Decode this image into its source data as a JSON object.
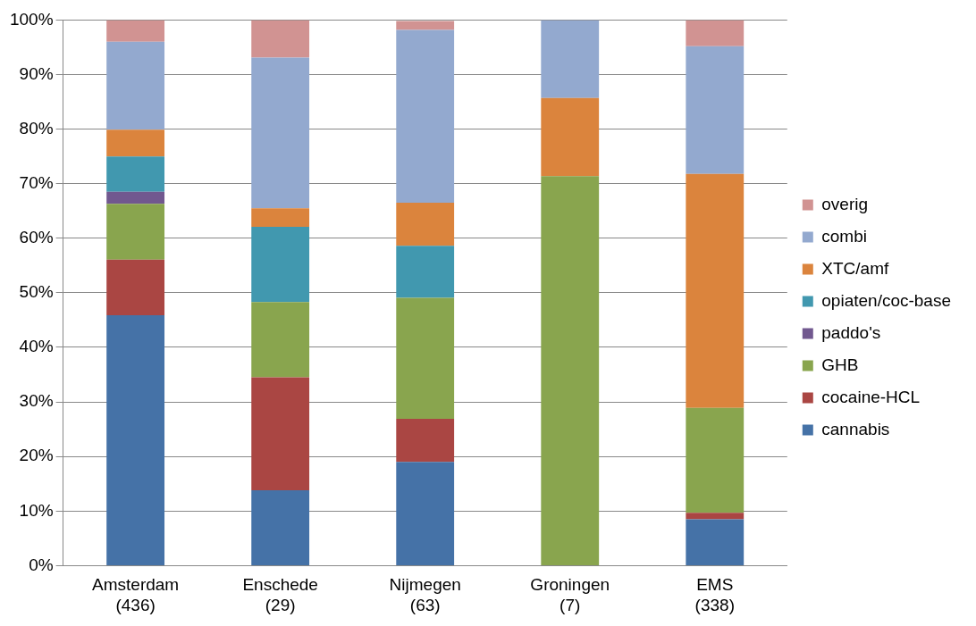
{
  "chart_data": {
    "type": "bar",
    "stacked": true,
    "categories": [
      "Amsterdam\n(436)",
      "Enschede\n(29)",
      "Nijmegen\n(63)",
      "Groningen\n(7)",
      "EMS\n(338)"
    ],
    "series": [
      {
        "name": "cannabis",
        "color": "#4572a7",
        "values": [
          45.9,
          13.8,
          19.0,
          0,
          8.5
        ]
      },
      {
        "name": "cocaine-HCL",
        "color": "#aa4643",
        "values": [
          10.2,
          20.7,
          7.9,
          0,
          1.2
        ]
      },
      {
        "name": "GHB",
        "color": "#89a54e",
        "values": [
          10.2,
          13.8,
          22.2,
          71.4,
          19.2
        ]
      },
      {
        "name": "paddo's",
        "color": "#71588f",
        "values": [
          2.2,
          0,
          0,
          0,
          0
        ]
      },
      {
        "name": "opiaten/coc-base",
        "color": "#4198af",
        "values": [
          6.5,
          13.8,
          9.5,
          0,
          0
        ]
      },
      {
        "name": "XTC/amf",
        "color": "#db843d",
        "values": [
          4.9,
          3.4,
          7.9,
          14.3,
          42.9
        ]
      },
      {
        "name": "combi",
        "color": "#93a9cf",
        "values": [
          16.1,
          27.6,
          31.7,
          14.3,
          23.4
        ]
      },
      {
        "name": "overig",
        "color": "#d19392",
        "values": [
          4.0,
          6.9,
          1.6,
          0,
          4.8
        ]
      }
    ],
    "ylim": [
      0,
      100
    ],
    "yticks": [
      {
        "value": 0,
        "label": "0%"
      },
      {
        "value": 10,
        "label": "10%"
      },
      {
        "value": 20,
        "label": "20%"
      },
      {
        "value": 30,
        "label": "30%"
      },
      {
        "value": 40,
        "label": "40%"
      },
      {
        "value": 50,
        "label": "50%"
      },
      {
        "value": 60,
        "label": "60%"
      },
      {
        "value": 70,
        "label": "70%"
      },
      {
        "value": 80,
        "label": "80%"
      },
      {
        "value": 90,
        "label": "90%"
      },
      {
        "value": 100,
        "label": "100%"
      }
    ],
    "grid": "y",
    "legend": "right"
  }
}
